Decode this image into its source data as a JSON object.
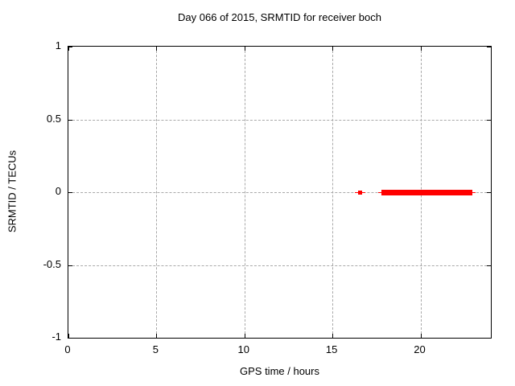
{
  "chart_data": {
    "type": "scatter",
    "title": "Day 066 of 2015, SRMTID for receiver boch",
    "xlabel": "GPS time / hours",
    "ylabel": "SRMTID / TECUs",
    "xlim": [
      0,
      24
    ],
    "ylim": [
      -1,
      1
    ],
    "xticks": [
      {
        "value": 0,
        "label": "0"
      },
      {
        "value": 5,
        "label": "5"
      },
      {
        "value": 10,
        "label": "10"
      },
      {
        "value": 15,
        "label": "15"
      },
      {
        "value": 20,
        "label": "20"
      }
    ],
    "yticks": [
      {
        "value": -1,
        "label": "-1"
      },
      {
        "value": -0.5,
        "label": "-0.5"
      },
      {
        "value": 0,
        "label": "0"
      },
      {
        "value": 0.5,
        "label": "0.5"
      },
      {
        "value": 1,
        "label": "1"
      }
    ],
    "grid": true,
    "grid_x_values": [
      5,
      10,
      15,
      20
    ],
    "grid_y_values": [
      -0.5,
      0,
      0.5
    ],
    "legend": "none",
    "colors": {
      "data": "#ff0000",
      "grid": "#a9a9a9",
      "border": "#000000",
      "background": "#ffffff",
      "text": "#000000"
    },
    "series": [
      {
        "name": "SRMTID",
        "color": "#ff0000",
        "y": 0,
        "segments": [
          {
            "x_start": 16.5,
            "x_end": 16.6,
            "thickness_px": 5
          },
          {
            "x_start": 17.8,
            "x_end": 22.95,
            "thickness_px": 7
          }
        ]
      }
    ]
  }
}
